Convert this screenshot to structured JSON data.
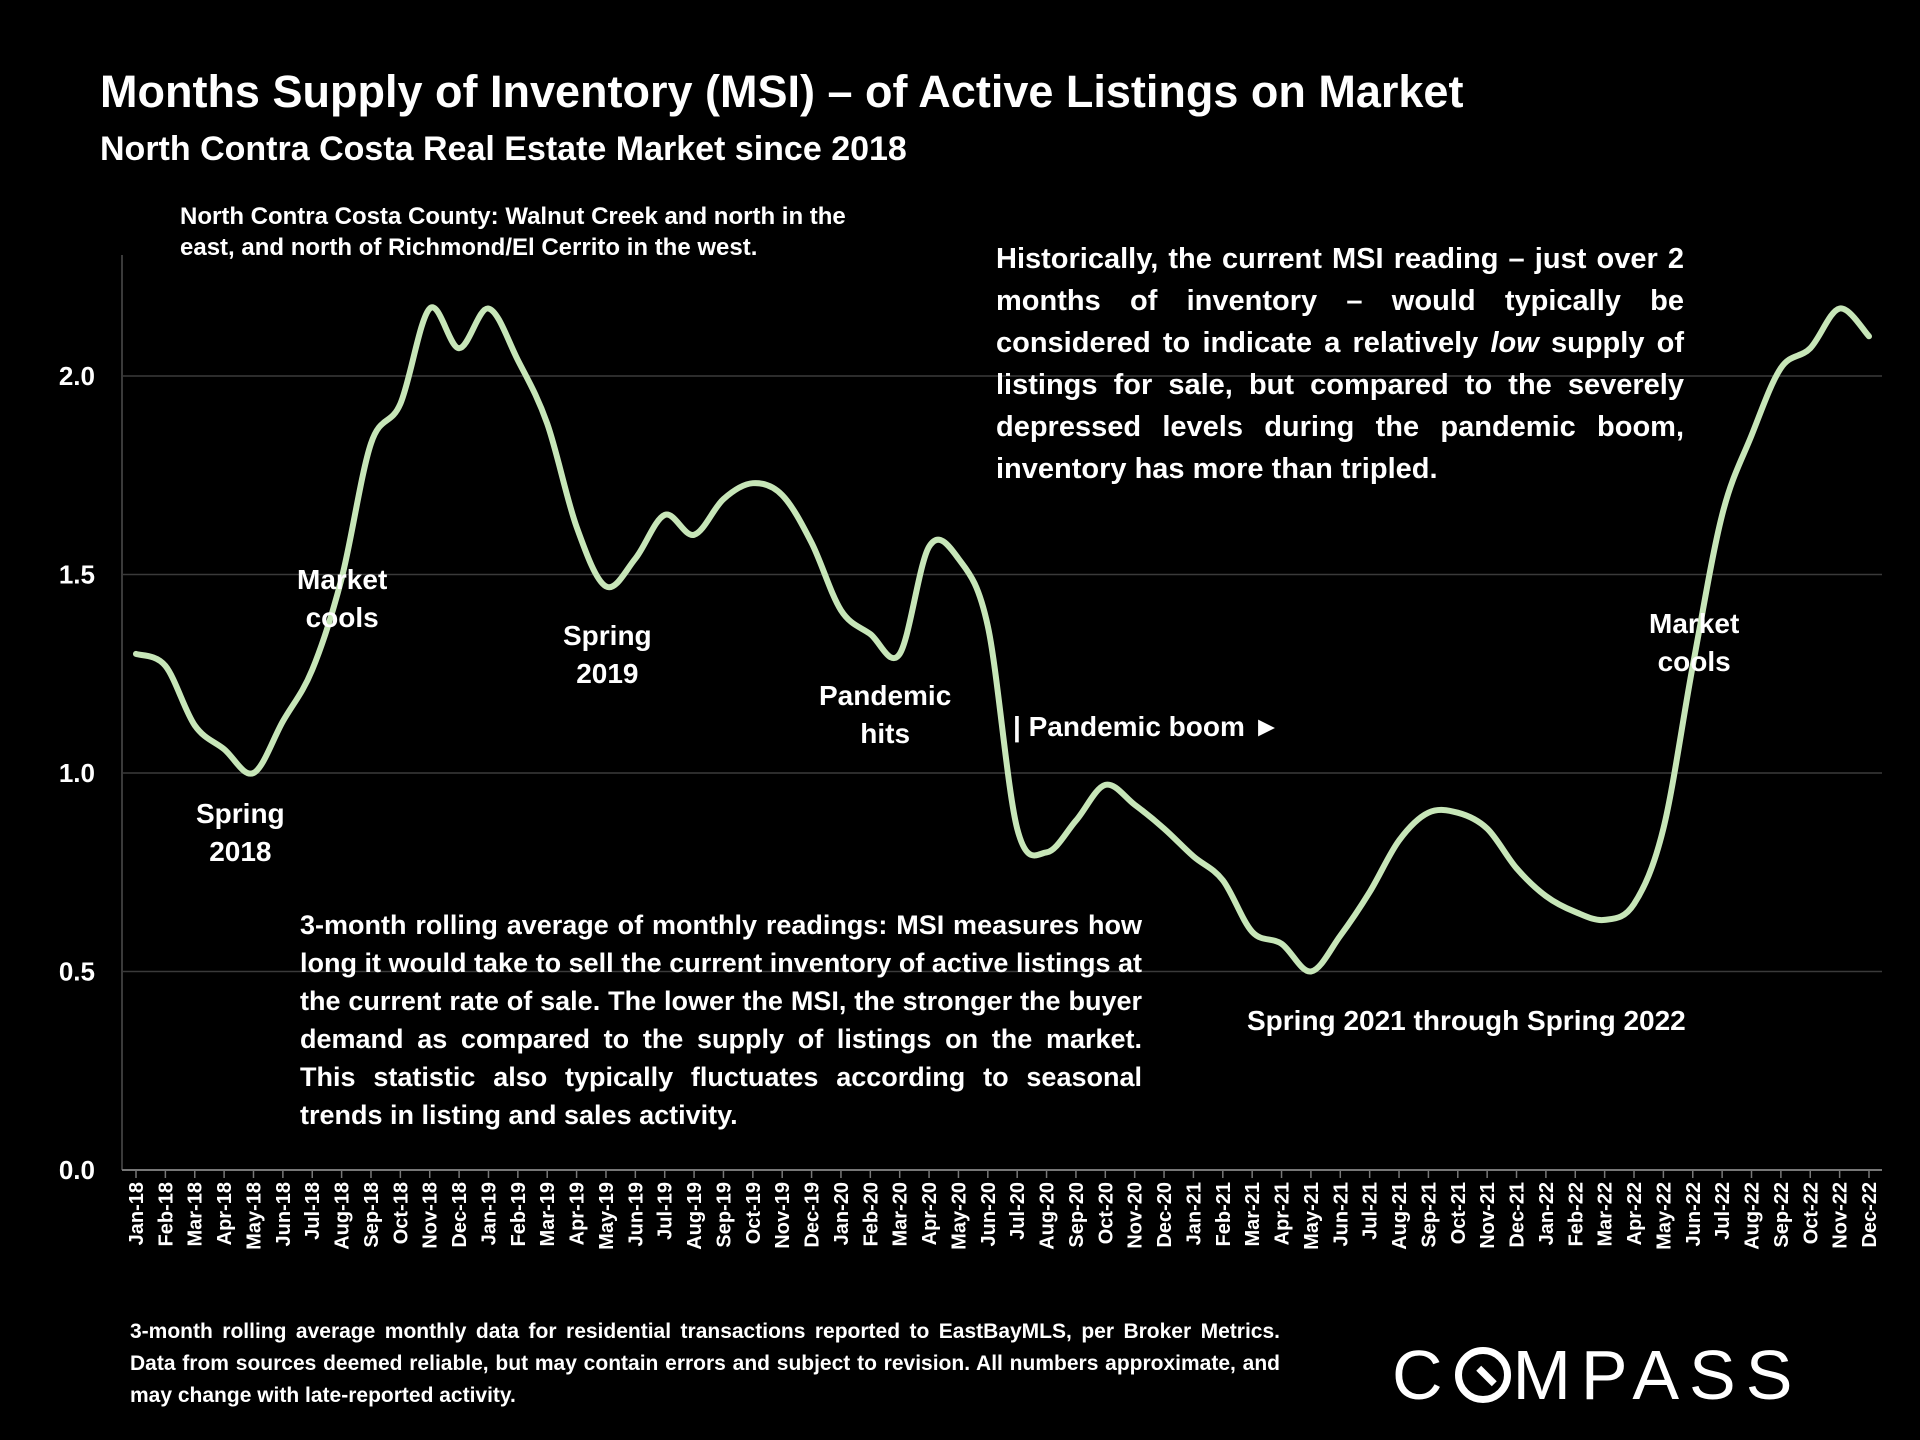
{
  "title": "Months Supply of Inventory (MSI) – of Active Listings on Market",
  "subtitle": "North Contra Costa Real Estate Market since 2018",
  "notes": {
    "region": "North Contra Costa County: Walnut Creek and north in the east, and north of Richmond/El Cerrito in the west.",
    "historical_pre": "Historically, the current MSI reading – just over 2 months of inventory – would typically be considered to indicate a relatively ",
    "historical_em": "low",
    "historical_post": " supply of listings for sale, but compared to the severely depressed levels during the pandemic boom, inventory has more than tripled.",
    "definition": "3-month rolling average of monthly readings: MSI measures how long it would take to sell the current inventory of active listings at the current rate of sale. The lower the MSI, the stronger the buyer demand as compared to the supply of listings on the market. This statistic also typically fluctuates according to seasonal trends in listing and sales activity."
  },
  "annotations": {
    "spring2018": [
      "Spring",
      "2018"
    ],
    "market_cools_1": [
      "Market",
      "cools"
    ],
    "spring2019": [
      "Spring",
      "2019"
    ],
    "pandemic_hits": [
      "Pandemic",
      "hits"
    ],
    "pandemic_boom": "| Pandemic boom ►",
    "spring2021_2022": "Spring 2021 through Spring 2022",
    "market_cools_2": [
      "Market",
      "cools"
    ]
  },
  "footer": "3-month rolling average monthly data for residential transactions reported to EastBayMLS, per Broker Metrics. Data from sources deemed reliable, but may contain errors and subject to revision. All numbers approximate, and may change with late-reported activity.",
  "brand": "COMPASS",
  "colors": {
    "background": "#000000",
    "line": "#c7e6b8",
    "grid": "#3a3a3a",
    "text": "#ffffff"
  },
  "chart_data": {
    "type": "line",
    "title": "Months Supply of Inventory (MSI) – of Active Listings on Market",
    "xlabel": "",
    "ylabel": "",
    "ylim": [
      0,
      2.3
    ],
    "yticks": [
      "0.0",
      "0.5",
      "1.0",
      "1.5",
      "2.0"
    ],
    "grid": true,
    "categories": [
      "Jan-18",
      "Feb-18",
      "Mar-18",
      "Apr-18",
      "May-18",
      "Jun-18",
      "Jul-18",
      "Aug-18",
      "Sep-18",
      "Oct-18",
      "Nov-18",
      "Dec-18",
      "Jan-19",
      "Feb-19",
      "Mar-19",
      "Apr-19",
      "May-19",
      "Jun-19",
      "Jul-19",
      "Aug-19",
      "Sep-19",
      "Oct-19",
      "Nov-19",
      "Dec-19",
      "Jan-20",
      "Feb-20",
      "Mar-20",
      "Apr-20",
      "May-20",
      "Jun-20",
      "Jul-20",
      "Aug-20",
      "Sep-20",
      "Oct-20",
      "Nov-20",
      "Dec-20",
      "Jan-21",
      "Feb-21",
      "Mar-21",
      "Apr-21",
      "May-21",
      "Jun-21",
      "Jul-21",
      "Aug-21",
      "Sep-21",
      "Oct-21",
      "Nov-21",
      "Dec-21",
      "Jan-22",
      "Feb-22",
      "Mar-22",
      "Apr-22",
      "May-22",
      "Jun-22",
      "Jul-22",
      "Aug-22",
      "Sep-22",
      "Oct-22",
      "Nov-22",
      "Dec-22"
    ],
    "series": [
      {
        "name": "MSI (3-month rolling average)",
        "values": [
          1.3,
          1.27,
          1.12,
          1.06,
          1.0,
          1.13,
          1.26,
          1.49,
          1.83,
          1.93,
          2.17,
          2.07,
          2.17,
          2.04,
          1.88,
          1.62,
          1.47,
          1.54,
          1.65,
          1.6,
          1.69,
          1.73,
          1.7,
          1.58,
          1.41,
          1.35,
          1.3,
          1.57,
          1.54,
          1.37,
          0.86,
          0.8,
          0.88,
          0.97,
          0.92,
          0.86,
          0.79,
          0.73,
          0.6,
          0.57,
          0.5,
          0.59,
          0.7,
          0.83,
          0.9,
          0.9,
          0.86,
          0.76,
          0.69,
          0.65,
          0.63,
          0.67,
          0.86,
          1.27,
          1.65,
          1.85,
          2.02,
          2.07,
          2.17,
          2.1
        ]
      }
    ]
  }
}
